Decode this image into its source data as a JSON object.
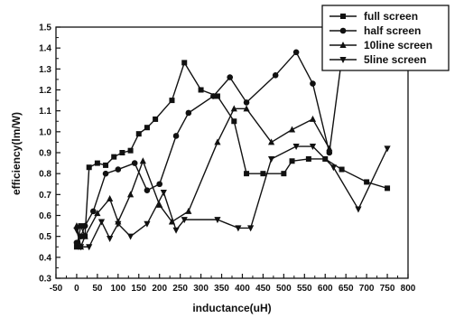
{
  "chart_data": {
    "type": "line",
    "xlabel": "inductance(uH)",
    "ylabel": "efficiency(lm/W)",
    "xlim": [
      -50,
      800
    ],
    "ylim": [
      0.3,
      1.5
    ],
    "xticks": [
      "-50",
      "0",
      "50",
      "100",
      "150",
      "200",
      "250",
      "300",
      "350",
      "400",
      "450",
      "500",
      "550",
      "600",
      "650",
      "700",
      "750",
      "800"
    ],
    "yticks": [
      "0.3",
      "0.4",
      "0.5",
      "0.6",
      "0.7",
      "0.8",
      "0.9",
      "1.0",
      "1.1",
      "1.2",
      "1.3",
      "1.4",
      "1.5"
    ],
    "legend_position": "top-right",
    "series": [
      {
        "name": "full screen",
        "marker": "square",
        "x": [
          0,
          10,
          20,
          30,
          50,
          70,
          90,
          110,
          130,
          150,
          170,
          190,
          230,
          260,
          300,
          340,
          380,
          410,
          450,
          500,
          520,
          560,
          600,
          640,
          700,
          750
        ],
        "y": [
          0.45,
          0.55,
          0.5,
          0.83,
          0.85,
          0.84,
          0.88,
          0.9,
          0.91,
          0.99,
          1.02,
          1.06,
          1.15,
          1.33,
          1.2,
          1.17,
          1.05,
          0.8,
          0.8,
          0.8,
          0.86,
          0.87,
          0.87,
          0.82,
          0.76,
          0.73
        ]
      },
      {
        "name": "half screen",
        "marker": "circle",
        "x": [
          0,
          10,
          20,
          40,
          70,
          100,
          140,
          170,
          200,
          240,
          270,
          330,
          370,
          410,
          480,
          530,
          570,
          610,
          640
        ],
        "y": [
          0.47,
          0.5,
          0.55,
          0.62,
          0.8,
          0.82,
          0.85,
          0.72,
          0.75,
          0.98,
          1.09,
          1.17,
          1.26,
          1.14,
          1.27,
          1.38,
          1.23,
          0.9,
          1.35
        ]
      },
      {
        "name": "10line screen",
        "marker": "triangle-up",
        "x": [
          0,
          10,
          20,
          50,
          80,
          100,
          130,
          160,
          200,
          230,
          270,
          340,
          380,
          410,
          470,
          520,
          570,
          610
        ],
        "y": [
          0.55,
          0.45,
          0.5,
          0.61,
          0.68,
          0.57,
          0.7,
          0.86,
          0.65,
          0.57,
          0.62,
          0.95,
          1.11,
          1.11,
          0.95,
          1.01,
          1.06,
          0.92
        ]
      },
      {
        "name": "5line screen",
        "marker": "triangle-down",
        "x": [
          0,
          10,
          30,
          60,
          80,
          100,
          130,
          170,
          210,
          240,
          260,
          340,
          390,
          420,
          470,
          530,
          570,
          620,
          680,
          750
        ],
        "y": [
          0.53,
          0.45,
          0.45,
          0.57,
          0.49,
          0.56,
          0.5,
          0.56,
          0.71,
          0.53,
          0.58,
          0.58,
          0.54,
          0.54,
          0.87,
          0.93,
          0.93,
          0.83,
          0.63,
          0.92
        ]
      }
    ]
  }
}
